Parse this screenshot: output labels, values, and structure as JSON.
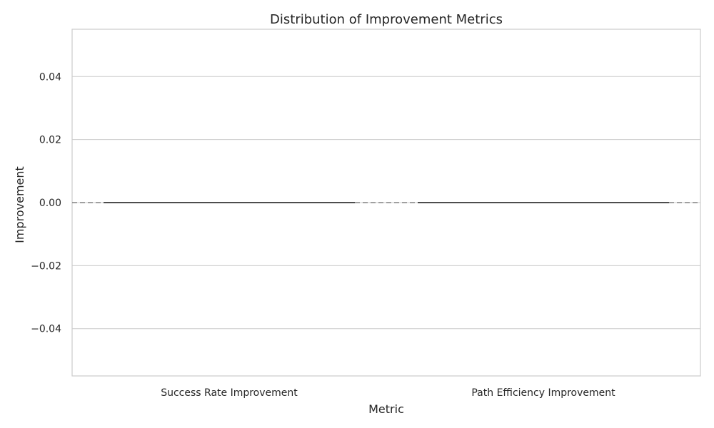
{
  "chart_data": {
    "type": "box",
    "title": "Distribution of Improvement Metrics",
    "xlabel": "Metric",
    "ylabel": "Improvement",
    "categories": [
      "Success Rate Improvement",
      "Path Efficiency Improvement"
    ],
    "boxes": [
      {
        "category": "Success Rate Improvement",
        "min": 0.0,
        "q1": 0.0,
        "median": 0.0,
        "q3": 0.0,
        "max": 0.0
      },
      {
        "category": "Path Efficiency Improvement",
        "min": 0.0,
        "q1": 0.0,
        "median": 0.0,
        "q3": 0.0,
        "max": 0.0
      }
    ],
    "ylim": [
      -0.055,
      0.055
    ],
    "yticks": [
      -0.04,
      -0.02,
      0.0,
      0.02,
      0.04
    ],
    "ytick_labels": [
      "−0.04",
      "−0.02",
      "0.00",
      "0.02",
      "0.04"
    ],
    "reference_line": {
      "y": 0.0,
      "style": "dashed"
    },
    "grid": true,
    "colors": {
      "grid": "#cccccc",
      "box_line": "#4d4d4d",
      "reference_line": "#808080",
      "text": "#262626",
      "spine": "#cccccc"
    }
  }
}
